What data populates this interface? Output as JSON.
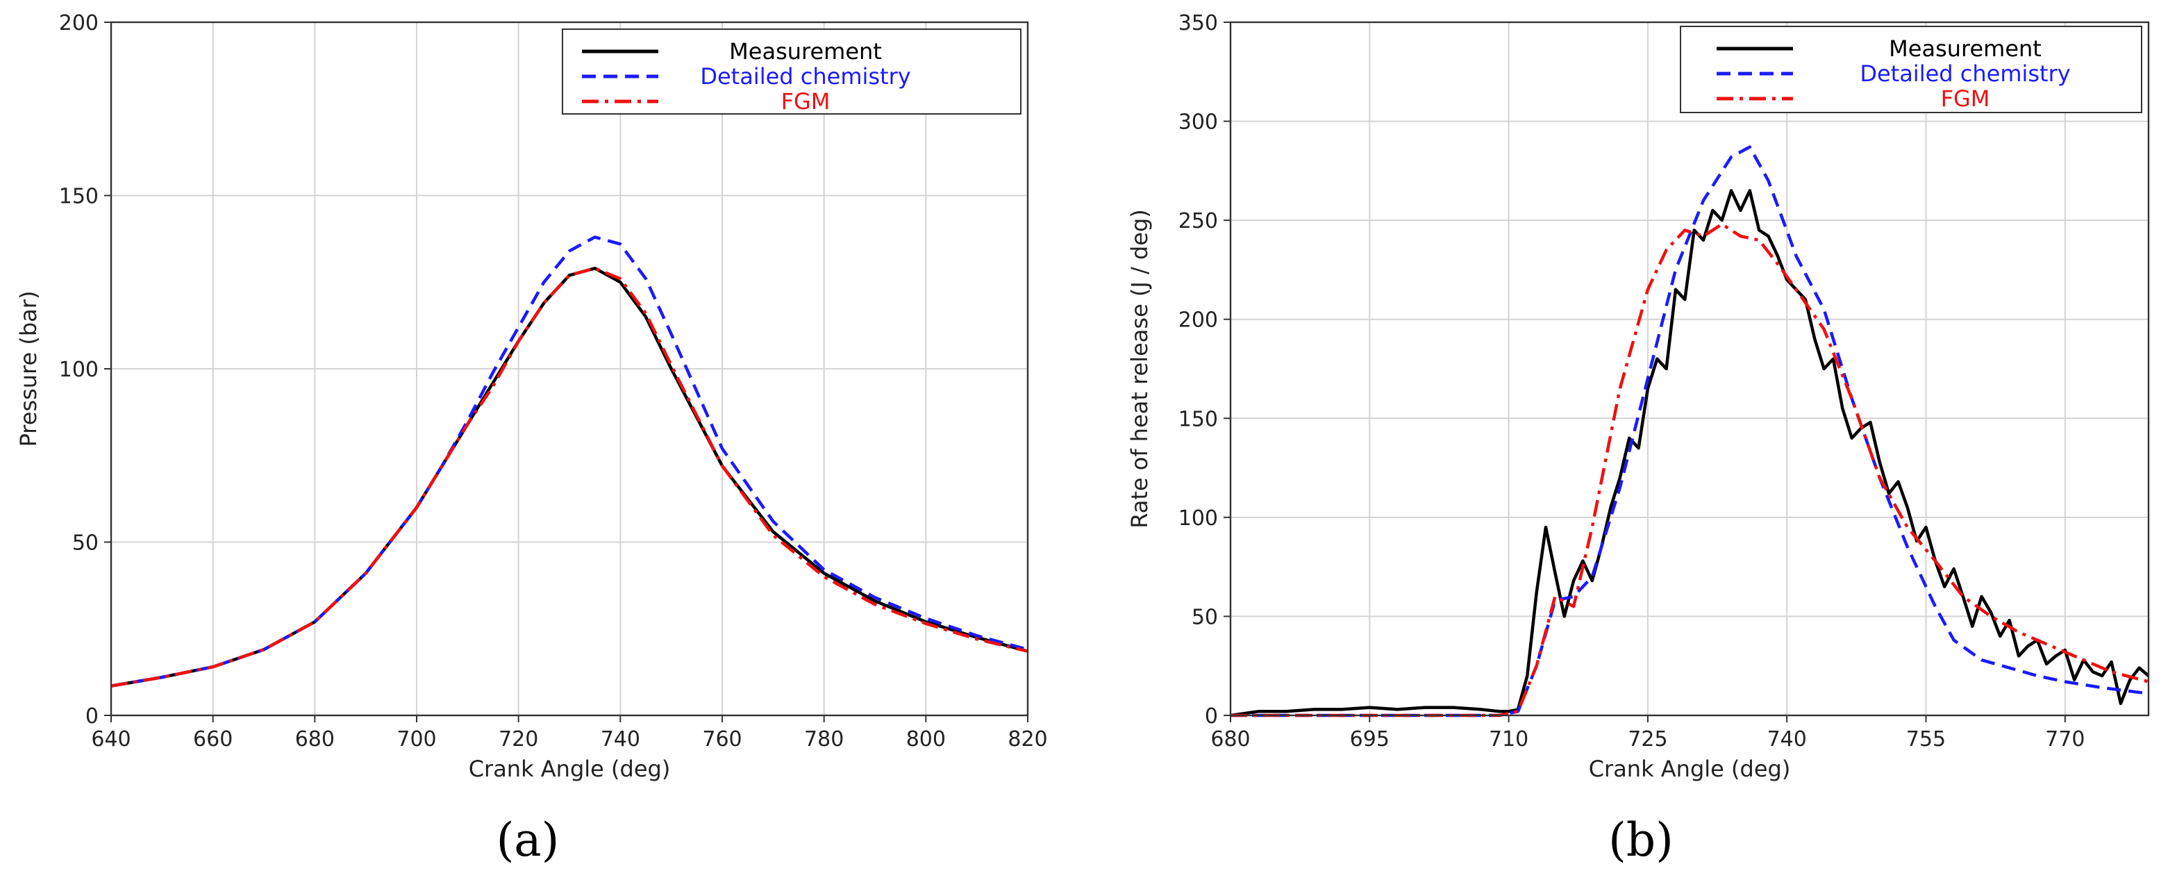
{
  "chart_data": [
    {
      "type": "line",
      "panel_label": "(a)",
      "xlabel": "Crank Angle (deg)",
      "ylabel": "Pressure (bar)",
      "xlim": [
        640,
        820
      ],
      "ylim": [
        0,
        200
      ],
      "x_ticks": [
        640,
        660,
        680,
        700,
        720,
        740,
        760,
        780,
        800,
        820
      ],
      "y_ticks": [
        0,
        50,
        100,
        150,
        200
      ],
      "grid": true,
      "legend_position": "top-right",
      "series": [
        {
          "name": "Measurement",
          "color": "#000000",
          "style": "solid",
          "x": [
            640,
            650,
            660,
            670,
            680,
            690,
            700,
            705,
            710,
            715,
            720,
            725,
            730,
            735,
            740,
            745,
            750,
            760,
            770,
            780,
            790,
            800,
            810,
            820
          ],
          "y": [
            8.5,
            11,
            14,
            19,
            27,
            41,
            60,
            72,
            84,
            96,
            108,
            119,
            127,
            129,
            125,
            115,
            100,
            72,
            53,
            41,
            33,
            27,
            22.5,
            18.5
          ]
        },
        {
          "name": "Detailed chemistry",
          "color": "#1a1aff",
          "style": "dashed",
          "x": [
            640,
            650,
            660,
            670,
            680,
            690,
            700,
            705,
            710,
            715,
            720,
            725,
            730,
            735,
            740,
            745,
            750,
            760,
            770,
            780,
            790,
            800,
            810,
            820
          ],
          "y": [
            8.5,
            11,
            14,
            19,
            27,
            41,
            60,
            72,
            85,
            99,
            112,
            125,
            134,
            138,
            136,
            126,
            110,
            77,
            56,
            42,
            34,
            28,
            23,
            19
          ]
        },
        {
          "name": "FGM",
          "color": "#ee1111",
          "style": "dashdot",
          "x": [
            640,
            650,
            660,
            670,
            680,
            690,
            700,
            705,
            710,
            715,
            720,
            725,
            730,
            735,
            740,
            745,
            750,
            760,
            770,
            780,
            790,
            800,
            810,
            820
          ],
          "y": [
            8.5,
            11,
            14,
            19,
            27,
            41,
            60,
            72,
            84,
            95,
            108,
            119,
            127,
            129,
            126,
            116,
            101,
            72,
            52,
            40,
            32,
            26.5,
            22,
            18.5
          ]
        }
      ]
    },
    {
      "type": "line",
      "panel_label": "(b)",
      "xlabel": "Crank Angle (deg)",
      "ylabel": "Rate of heat release (J / deg)",
      "xlim": [
        680,
        779
      ],
      "ylim": [
        0,
        350
      ],
      "x_ticks": [
        680,
        695,
        710,
        725,
        740,
        755,
        770
      ],
      "y_ticks": [
        0,
        50,
        100,
        150,
        200,
        250,
        300,
        350
      ],
      "grid": true,
      "legend_position": "top-right",
      "series": [
        {
          "name": "Measurement",
          "color": "#000000",
          "style": "solid",
          "x": [
            680,
            683,
            686,
            689,
            692,
            695,
            698,
            701,
            704,
            707,
            709,
            710,
            711,
            712,
            713,
            714,
            715,
            716,
            717,
            718,
            719,
            720,
            721,
            722,
            723,
            724,
            725,
            726,
            727,
            728,
            729,
            730,
            731,
            732,
            733,
            734,
            735,
            736,
            737,
            738,
            739,
            740,
            741,
            742,
            743,
            744,
            745,
            746,
            747,
            748,
            749,
            750,
            751,
            752,
            753,
            754,
            755,
            756,
            757,
            758,
            759,
            760,
            761,
            762,
            763,
            764,
            765,
            766,
            767,
            768,
            769,
            770,
            771,
            772,
            773,
            774,
            775,
            776,
            777,
            778,
            779
          ],
          "y": [
            0,
            2,
            2,
            3,
            3,
            4,
            3,
            4,
            4,
            3,
            2,
            2,
            3,
            20,
            62,
            95,
            72,
            50,
            68,
            78,
            68,
            85,
            105,
            120,
            140,
            135,
            165,
            180,
            175,
            215,
            210,
            245,
            240,
            255,
            250,
            265,
            255,
            265,
            245,
            242,
            232,
            220,
            215,
            210,
            190,
            175,
            180,
            155,
            140,
            145,
            148,
            128,
            112,
            118,
            105,
            88,
            95,
            78,
            65,
            74,
            60,
            45,
            60,
            52,
            40,
            48,
            30,
            35,
            38,
            26,
            30,
            33,
            18,
            28,
            22,
            20,
            27,
            6,
            18,
            24,
            20
          ]
        },
        {
          "name": "Detailed chemistry",
          "color": "#1a1aff",
          "style": "dashed",
          "x": [
            680,
            690,
            700,
            709,
            711,
            713,
            715,
            717,
            719,
            722,
            725,
            728,
            731,
            734,
            736,
            738,
            741,
            744,
            747,
            750,
            753,
            756,
            758,
            761,
            764,
            767,
            770,
            774,
            779
          ],
          "y": [
            0,
            0,
            0,
            0,
            2,
            25,
            58,
            60,
            70,
            115,
            170,
            225,
            260,
            282,
            287,
            270,
            232,
            205,
            160,
            120,
            85,
            55,
            38,
            28,
            24,
            20,
            17,
            14,
            11
          ]
        },
        {
          "name": "FGM",
          "color": "#ee1111",
          "style": "dashdot",
          "x": [
            680,
            690,
            700,
            709,
            711,
            713,
            715,
            717,
            719,
            722,
            725,
            727,
            729,
            731,
            733,
            735,
            737,
            739,
            741,
            744,
            747,
            750,
            753,
            756,
            759,
            762,
            765,
            768,
            771,
            775,
            779
          ],
          "y": [
            0,
            0,
            0,
            0,
            2,
            25,
            60,
            55,
            95,
            165,
            215,
            235,
            245,
            242,
            248,
            242,
            240,
            228,
            215,
            195,
            160,
            120,
            95,
            78,
            60,
            50,
            42,
            36,
            30,
            22,
            17
          ]
        }
      ]
    }
  ]
}
